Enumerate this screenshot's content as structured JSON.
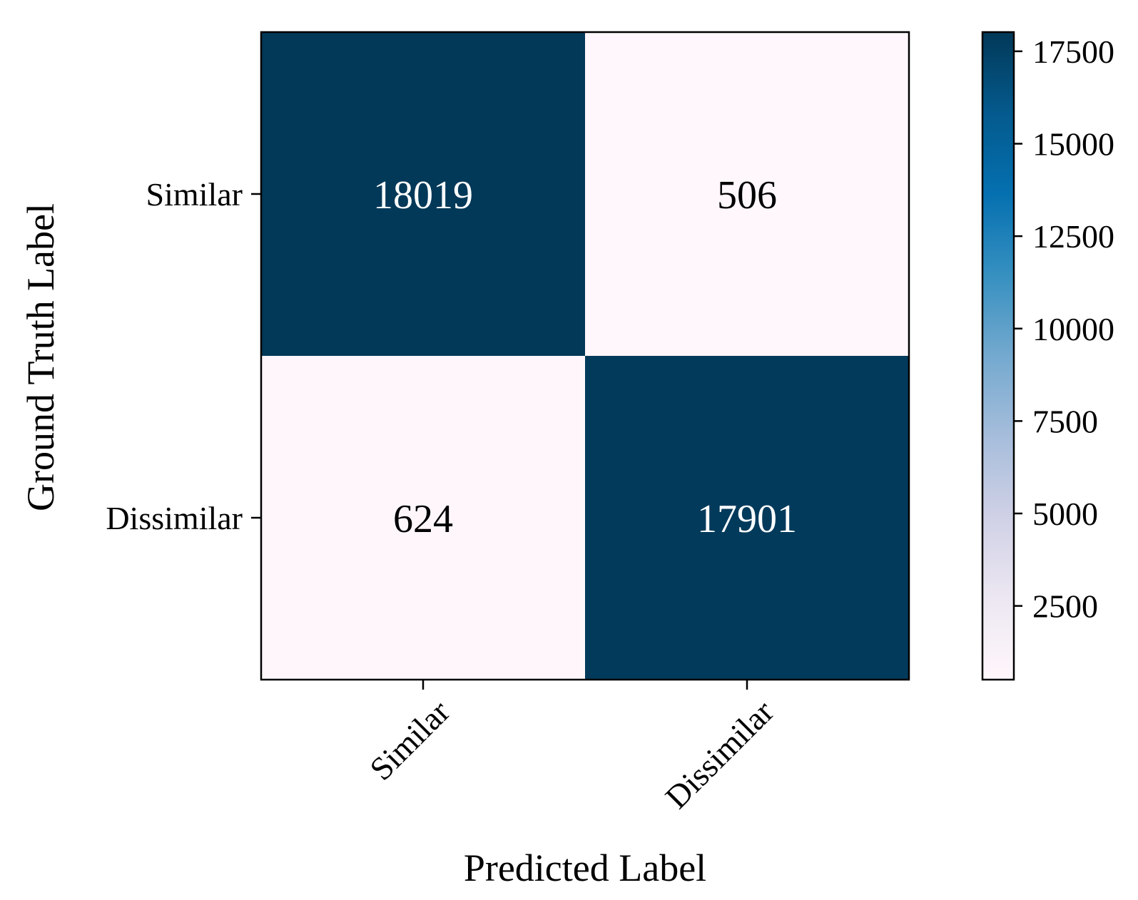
{
  "chart_data": {
    "type": "heatmap",
    "title": "",
    "xlabel": "Predicted Label",
    "ylabel": "Ground Truth Label",
    "x_categories": [
      "Similar",
      "Dissimilar"
    ],
    "y_categories": [
      "Similar",
      "Dissimilar"
    ],
    "matrix": [
      [
        18019,
        506
      ],
      [
        624,
        17901
      ]
    ],
    "colorbar": {
      "vmin": 506,
      "vmax": 18019,
      "ticks": [
        2500,
        5000,
        7500,
        10000,
        12500,
        15000,
        17500
      ],
      "colormap": "PuBu",
      "colors": [
        "#fff7fb",
        "#ece7f2",
        "#d0d1e6",
        "#a6bddb",
        "#74a9cf",
        "#3690c0",
        "#0570b0",
        "#045a8d",
        "#023858"
      ]
    },
    "grid": false
  }
}
